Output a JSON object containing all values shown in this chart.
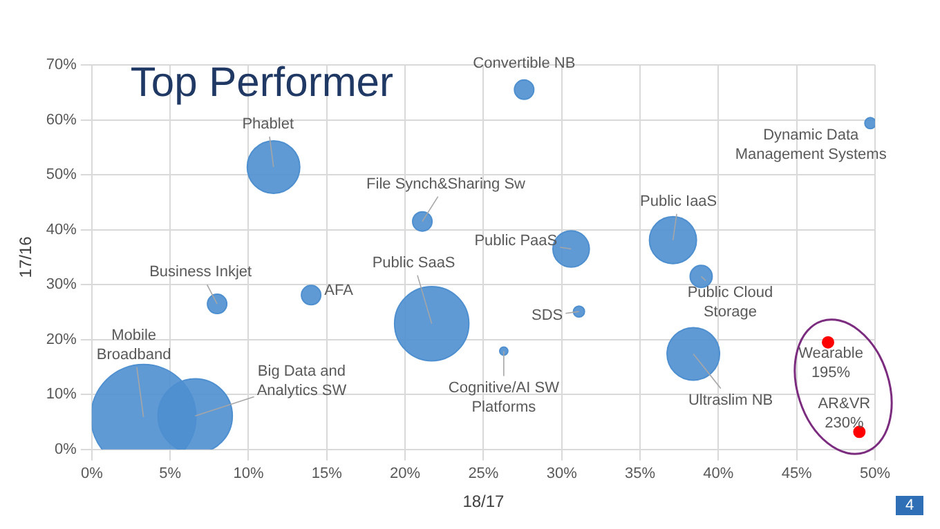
{
  "chart_data": {
    "type": "bubble",
    "title": "Top Performer",
    "xlabel": "18/17",
    "ylabel": "17/16",
    "x": [
      3.3,
      6.6,
      11.6,
      21.1,
      8.0,
      14.0,
      21.7,
      27.6,
      49.7,
      30.6,
      37.1,
      38.9,
      31.1,
      26.3,
      38.4
    ],
    "series": [
      {
        "color": "#4e8fd0",
        "values": [
          5.9,
          6.1,
          51.4,
          41.5,
          26.5,
          28.1,
          22.9,
          65.5,
          59.4,
          36.5,
          38.1,
          31.5,
          25.1,
          17.9,
          17.4
        ],
        "sizes": [
          1,
          0.5,
          0.25,
          0.034,
          0.034,
          0.034,
          0.5,
          0.034,
          0.011,
          0.12,
          0.2,
          0.044,
          0.011,
          0.006,
          0.25
        ]
      },
      {
        "type": "scatter",
        "color": "#ff0000",
        "x": [
          47.0,
          49.0
        ],
        "values": [
          19.5,
          3.2
        ]
      }
    ],
    "xlim": [
      0,
      50
    ],
    "ylim": [
      0,
      70
    ],
    "xticks": [
      {
        "value": 0,
        "label": "0%"
      },
      {
        "value": 5,
        "label": "5%"
      },
      {
        "value": 10,
        "label": "10%"
      },
      {
        "value": 15,
        "label": "15%"
      },
      {
        "value": 20,
        "label": "20%"
      },
      {
        "value": 25,
        "label": "25%"
      },
      {
        "value": 30,
        "label": "30%"
      },
      {
        "value": 35,
        "label": "35%"
      },
      {
        "value": 40,
        "label": "40%"
      },
      {
        "value": 45,
        "label": "45%"
      },
      {
        "value": 50,
        "label": "50%"
      }
    ],
    "yticks": [
      {
        "value": 0,
        "label": "0%"
      },
      {
        "value": 10,
        "label": "10%"
      },
      {
        "value": 20,
        "label": "20%"
      },
      {
        "value": 30,
        "label": "30%"
      },
      {
        "value": 40,
        "label": "40%"
      },
      {
        "value": 50,
        "label": "50%"
      },
      {
        "value": 60,
        "label": "60%"
      },
      {
        "value": 70,
        "label": "70%"
      }
    ],
    "grid": true,
    "legend": false,
    "marker": "circle",
    "annotations": [
      {
        "text": "Mobile\nBroadband",
        "x": 3.3,
        "y": 5.9
      },
      {
        "text": "Big Data and\nAnalytics SW",
        "x": 6.6,
        "y": 6.1
      },
      {
        "text": "Phablet",
        "x": 11.6,
        "y": 51.4
      },
      {
        "text": "File Synch&Sharing Sw",
        "x": 21.1,
        "y": 41.5
      },
      {
        "text": "Business Inkjet",
        "x": 8.0,
        "y": 26.5
      },
      {
        "text": "AFA",
        "x": 14.0,
        "y": 28.1
      },
      {
        "text": "Public SaaS",
        "x": 21.7,
        "y": 22.9
      },
      {
        "text": "Convertible NB",
        "x": 27.6,
        "y": 65.5
      },
      {
        "text": "Dynamic Data\nManagement Systems",
        "x": 49.7,
        "y": 59.4
      },
      {
        "text": "Public PaaS",
        "x": 30.6,
        "y": 36.5
      },
      {
        "text": "Public IaaS",
        "x": 37.1,
        "y": 38.1
      },
      {
        "text": "Public Cloud\nStorage",
        "x": 38.9,
        "y": 31.5
      },
      {
        "text": "SDS",
        "x": 31.1,
        "y": 25.1
      },
      {
        "text": "Cognitive/AI SW\nPlatforms",
        "x": 26.3,
        "y": 17.9
      },
      {
        "text": "Ultraslim NB",
        "x": 38.4,
        "y": 17.4
      },
      {
        "text": "Wearable\n195%",
        "x": 47.0,
        "y": 19.5
      },
      {
        "text": "AR&VR\n230%",
        "x": 49.0,
        "y": 3.2
      },
      "4"
    ]
  }
}
